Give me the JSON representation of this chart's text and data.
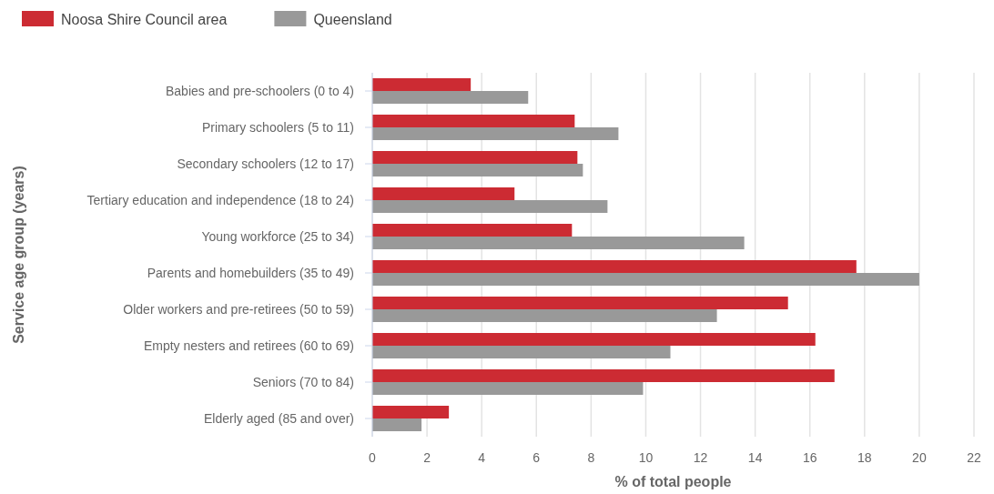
{
  "chart_data": {
    "type": "bar",
    "orientation": "horizontal",
    "xlabel": "% of total people",
    "ylabel": "Service age group (years)",
    "categories": [
      "Babies and pre-schoolers (0 to 4)",
      "Primary schoolers (5 to 11)",
      "Secondary schoolers (12 to 17)",
      "Tertiary education and independence (18 to 24)",
      "Young workforce (25 to 34)",
      "Parents and homebuilders (35 to 49)",
      "Older workers and pre-retirees (50 to 59)",
      "Empty nesters and retirees (60 to 69)",
      "Seniors (70 to 84)",
      "Elderly aged (85 and over)"
    ],
    "series": [
      {
        "name": "Noosa Shire Council area",
        "color": "#cc2b33",
        "values": [
          3.6,
          7.4,
          7.5,
          5.2,
          7.3,
          17.7,
          15.2,
          16.2,
          16.9,
          2.8
        ]
      },
      {
        "name": "Queensland",
        "color": "#999999",
        "values": [
          5.7,
          9.0,
          7.7,
          8.6,
          13.6,
          20.0,
          12.6,
          10.9,
          9.9,
          1.8
        ]
      }
    ],
    "xlim": [
      0,
      22
    ],
    "xticks": [
      0,
      2,
      4,
      6,
      8,
      10,
      12,
      14,
      16,
      18,
      20,
      22
    ],
    "grid": "x",
    "legend": "top left"
  }
}
